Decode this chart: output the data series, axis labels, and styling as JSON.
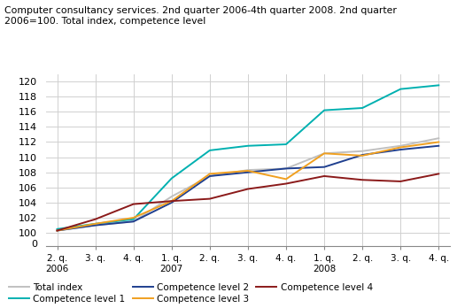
{
  "title": "Computer consultancy services. 2nd quarter 2006-4th quarter 2008. 2nd quarter\n2006=100. Total index, competence level",
  "x_labels": [
    "2. q.\n2006",
    "3. q.",
    "4. q.",
    "1. q.\n2007",
    "2. q.",
    "3. q.",
    "4. q.",
    "1. q.\n2008",
    "2. q.",
    "3. q.",
    "4. q."
  ],
  "total_index": [
    100.3,
    101.0,
    101.5,
    104.8,
    107.5,
    108.3,
    108.5,
    110.5,
    110.8,
    111.5,
    112.5
  ],
  "competence_level_1": [
    100.5,
    101.2,
    101.8,
    107.2,
    110.9,
    111.5,
    111.7,
    116.2,
    116.5,
    119.0,
    119.5
  ],
  "competence_level_2": [
    100.3,
    101.0,
    101.5,
    104.0,
    107.5,
    108.0,
    108.5,
    108.7,
    110.3,
    111.0,
    111.5
  ],
  "competence_level_3": [
    100.3,
    101.2,
    102.0,
    104.2,
    107.8,
    108.2,
    107.1,
    110.5,
    110.2,
    111.3,
    112.0
  ],
  "competence_level_4": [
    100.3,
    101.8,
    103.8,
    104.2,
    104.5,
    105.8,
    106.5,
    107.5,
    107.0,
    106.8,
    107.8
  ],
  "color_total": "#c0c0c0",
  "color_level1": "#00b0b0",
  "color_level2": "#1f3f8f",
  "color_level3": "#f0a020",
  "color_level4": "#8b1a1a",
  "ylim_main": [
    99.5,
    121
  ],
  "ylim_zero": [
    -0.5,
    1.0
  ],
  "yticks_main": [
    100,
    102,
    104,
    106,
    108,
    110,
    112,
    114,
    116,
    118,
    120
  ],
  "legend_labels": [
    "Total index",
    "Competence level 1",
    "Competence level 2",
    "Competence level 3",
    "Competence level 4"
  ],
  "legend_ncol": [
    3,
    2
  ],
  "grid_color": "#d0d0d0",
  "linewidth": 1.4
}
